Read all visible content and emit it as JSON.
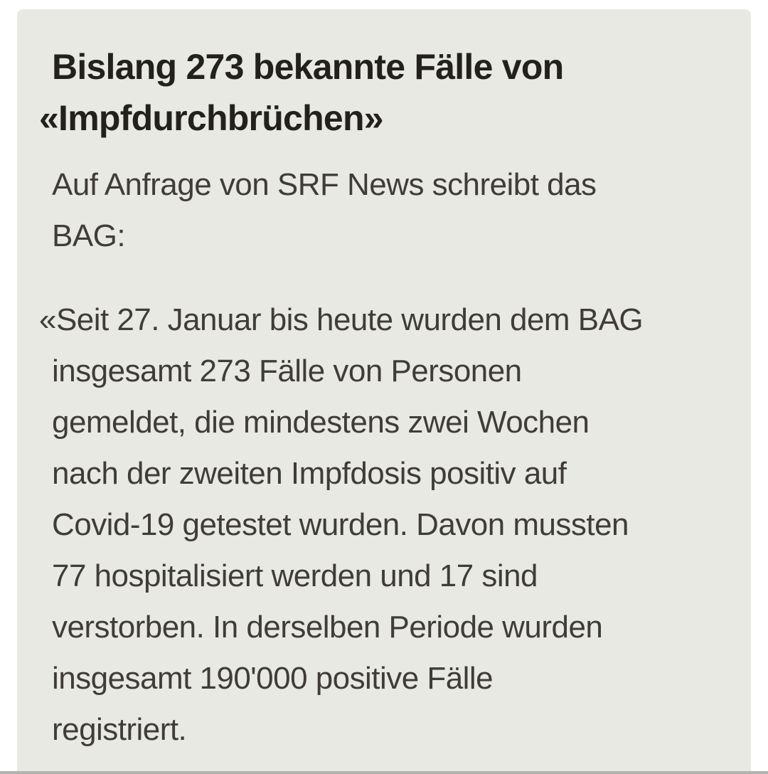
{
  "colors": {
    "page_bg": "#ffffff",
    "card_bg": "#e9e9e3",
    "heading": "#23211c",
    "body_text": "#3f3d36",
    "divider": "#b2b2ae"
  },
  "article": {
    "heading": {
      "full_text": "Bislang 273 bekannte Fälle von «Impfdurchbrüchen»",
      "lines": [
        "Bislang 273 bekannte Fälle von",
        "«Impfdurchbrüchen»"
      ]
    },
    "intro": {
      "full_text": "Auf Anfrage von SRF News schreibt das BAG:",
      "lines": [
        "Auf Anfrage von SRF News schreibt das",
        "BAG:"
      ]
    },
    "quote": {
      "full_text": "«Seit 27. Januar bis heute wurden dem BAG insgesamt 273 Fälle von Personen gemeldet, die mindestens zwei Wochen nach der zweiten Impfdosis positiv auf Covid-19 getestet wurden. Davon mussten 77 hospitalisiert werden und 17 sind verstorben. In derselben Periode wurden insgesamt 190'000 positive Fälle registriert.",
      "lines": [
        "«Seit 27. Januar bis heute wurden dem BAG",
        "insgesamt 273 Fälle von Personen",
        "gemeldet, die mindestens zwei Wochen",
        "nach der zweiten Impfdosis positiv auf",
        "Covid-19 getestet wurden. Davon mussten",
        "77 hospitalisiert werden und 17 sind",
        "verstorben. In derselben Periode wurden",
        "insgesamt 190'000 positive Fälle",
        "registriert."
      ]
    }
  }
}
